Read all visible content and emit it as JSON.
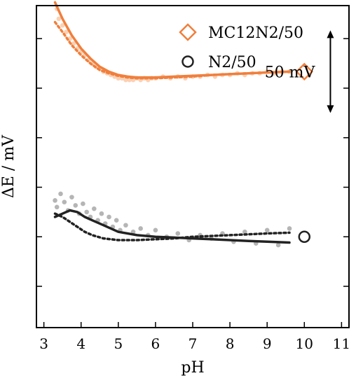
{
  "chart_data": {
    "type": "line",
    "title": "",
    "xlabel": "pH",
    "ylabel": "ΔE / mV",
    "xlim": [
      2.8,
      11.2
    ],
    "ylim": [
      -55,
      140
    ],
    "x_ticks": [
      3,
      4,
      5,
      6,
      7,
      8,
      9,
      10,
      11
    ],
    "y_ticks": [
      -30,
      0,
      30,
      60,
      90,
      120
    ],
    "y_tick_labels_shown": false,
    "grid": false,
    "legend_placement": "top-right",
    "scale_bar": {
      "label": "50 mV",
      "value_mV": 50,
      "x_pH": 10.7,
      "y_from": 75,
      "y_to": 125
    },
    "series": [
      {
        "name": "MC12N2/50",
        "color": "#f07f3c",
        "marker": "diamond",
        "end_marker": {
          "x": 10.0,
          "y": 100
        },
        "fit": {
          "x": [
            3.3,
            3.5,
            3.75,
            4.0,
            4.25,
            4.5,
            4.75,
            5.0,
            5.25,
            5.5,
            5.75,
            6.0,
            6.5,
            7.0,
            7.5,
            8.0,
            8.5,
            9.0,
            9.6
          ],
          "y": [
            142,
            132,
            122,
            114,
            108,
            103,
            100,
            98,
            97,
            96.5,
            96.5,
            96.5,
            97,
            97.5,
            98,
            98.5,
            99,
            99.5,
            100
          ]
        },
        "fit_dotted": {
          "x": [
            3.3,
            3.5,
            3.75,
            4.0,
            4.25,
            4.5,
            4.75,
            5.0,
            5.25,
            5.5,
            5.75,
            6.0,
            6.5,
            7.0,
            7.5,
            8.0,
            8.5,
            9.0,
            9.6
          ],
          "y": [
            130,
            124,
            116,
            110,
            105,
            101,
            99,
            97.5,
            96.5,
            96,
            96,
            96,
            96.5,
            97,
            98,
            98.5,
            99,
            99.5,
            100
          ]
        },
        "points": {
          "x": [
            3.3,
            3.35,
            3.4,
            3.5,
            3.6,
            3.7,
            3.8,
            3.9,
            4.0,
            4.1,
            4.2,
            4.3,
            4.4,
            4.5,
            4.6,
            4.7,
            4.8,
            4.9,
            5.0,
            5.1,
            5.2,
            5.3,
            5.4,
            5.5,
            5.6,
            5.7,
            5.8,
            5.9,
            6.0,
            6.2,
            6.4,
            6.6,
            6.8,
            7.0,
            7.2,
            7.4,
            7.6,
            7.8,
            8.0,
            8.2,
            8.4,
            8.6,
            8.8,
            9.0,
            9.2,
            9.4,
            9.6
          ],
          "y": [
            146,
            138,
            132,
            128,
            124,
            120,
            117,
            114,
            112,
            110,
            107,
            105,
            103,
            102,
            100,
            99,
            98,
            97,
            96,
            96,
            95,
            95,
            95,
            96,
            95,
            96,
            95,
            96,
            96,
            97,
            96,
            97,
            96,
            97,
            97,
            98,
            97,
            98,
            98,
            99,
            98,
            99,
            99,
            100,
            99,
            100,
            100
          ]
        }
      },
      {
        "name": "N2/50",
        "color": "#222222",
        "marker": "circle",
        "end_marker": {
          "x": 10.0,
          "y": 0
        },
        "fit": {
          "x": [
            3.3,
            3.5,
            3.7,
            3.9,
            4.1,
            4.3,
            4.6,
            5.0,
            5.5,
            6.0,
            6.5,
            7.0,
            7.5,
            8.0,
            8.5,
            9.0,
            9.6
          ],
          "y": [
            12,
            14,
            16,
            15,
            12,
            10,
            7,
            3,
            1,
            0,
            -0.5,
            -1,
            -1.5,
            -2,
            -2.5,
            -3,
            -3.5
          ]
        },
        "fit_dotted": {
          "x": [
            3.3,
            3.5,
            3.7,
            3.9,
            4.1,
            4.3,
            4.6,
            5.0,
            5.5,
            6.0,
            6.5,
            7.0,
            7.5,
            8.0,
            8.5,
            9.0,
            9.6
          ],
          "y": [
            14,
            12,
            9,
            6,
            3,
            1,
            -1,
            -2,
            -2,
            -1.5,
            -1,
            0,
            0.5,
            1,
            1.5,
            2,
            2.5
          ]
        },
        "points": {
          "x": [
            3.3,
            3.35,
            3.45,
            3.55,
            3.65,
            3.75,
            3.85,
            3.95,
            4.05,
            4.15,
            4.25,
            4.35,
            4.45,
            4.55,
            4.65,
            4.75,
            4.85,
            4.95,
            5.05,
            5.2,
            5.4,
            5.6,
            5.8,
            6.0,
            6.3,
            6.6,
            6.9,
            7.2,
            7.5,
            7.8,
            8.1,
            8.4,
            8.7,
            9.0,
            9.3,
            9.6
          ],
          "y": [
            22,
            18,
            26,
            21,
            16,
            24,
            19,
            14,
            20,
            15,
            12,
            17,
            10,
            14,
            8,
            12,
            6,
            10,
            4,
            7,
            3,
            5,
            1,
            4,
            0,
            2,
            -2,
            1,
            -1,
            2,
            -3,
            3,
            -4,
            4,
            -5,
            5
          ]
        }
      }
    ]
  }
}
